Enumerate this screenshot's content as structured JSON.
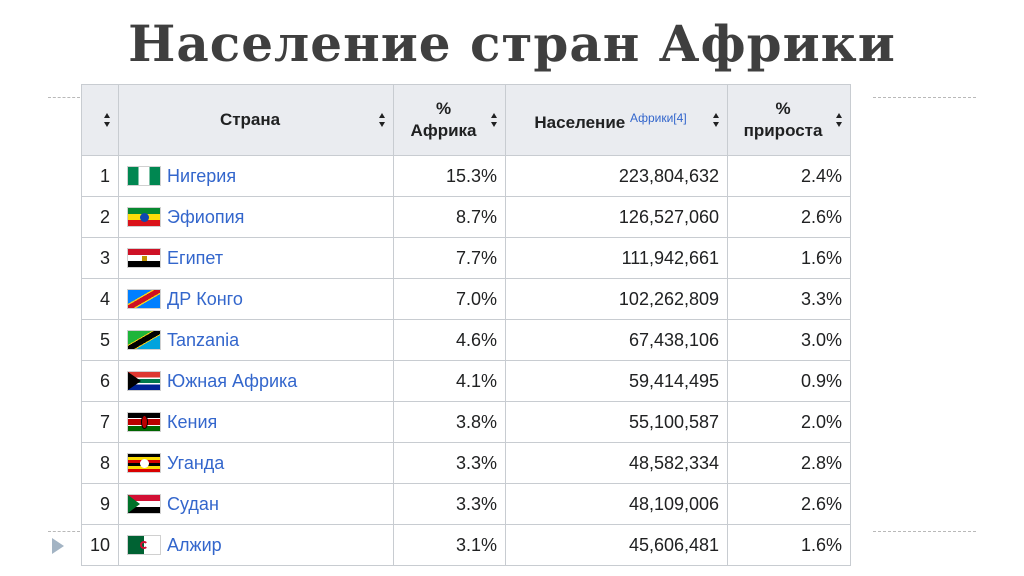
{
  "slide": {
    "title": "Население стран Африки"
  },
  "table": {
    "headers": {
      "rank": "",
      "country": "Страна",
      "share_line1": "%",
      "share_line2": "Африка",
      "population": "Население",
      "population_ref": "Африки[4]",
      "growth_line1": "%",
      "growth_line2": "прироста"
    },
    "rows": [
      {
        "rank": "1",
        "flag": "flag-ng",
        "country": "Нигерия",
        "share": "15.3%",
        "population": "223,804,632",
        "growth": "2.4%"
      },
      {
        "rank": "2",
        "flag": "flag-et",
        "country": "Эфиопия",
        "share": "8.7%",
        "population": "126,527,060",
        "growth": "2.6%"
      },
      {
        "rank": "3",
        "flag": "flag-eg",
        "country": "Египет",
        "share": "7.7%",
        "population": "111,942,661",
        "growth": "1.6%"
      },
      {
        "rank": "4",
        "flag": "flag-cd",
        "country": "ДР Конго",
        "share": "7.0%",
        "population": "102,262,809",
        "growth": "3.3%"
      },
      {
        "rank": "5",
        "flag": "flag-tz",
        "country": "Tanzania",
        "share": "4.6%",
        "population": "67,438,106",
        "growth": "3.0%"
      },
      {
        "rank": "6",
        "flag": "flag-za",
        "country": "Южная Африка",
        "share": "4.1%",
        "population": "59,414,495",
        "growth": "0.9%"
      },
      {
        "rank": "7",
        "flag": "flag-ke",
        "country": "Кения",
        "share": "3.8%",
        "population": "55,100,587",
        "growth": "2.0%"
      },
      {
        "rank": "8",
        "flag": "flag-ug",
        "country": "Уганда",
        "share": "3.3%",
        "population": "48,582,334",
        "growth": "2.8%"
      },
      {
        "rank": "9",
        "flag": "flag-sd",
        "country": "Судан",
        "share": "3.3%",
        "population": "48,109,006",
        "growth": "2.6%"
      },
      {
        "rank": "10",
        "flag": "flag-dz",
        "country": "Алжир",
        "share": "3.1%",
        "population": "45,606,481",
        "growth": "1.6%"
      }
    ]
  },
  "colors": {
    "title": "#3f3f3f",
    "link": "#3366cc",
    "header_bg": "#eaecf0",
    "border": "#c8ccd1",
    "bullet": "#a3b4c4"
  }
}
